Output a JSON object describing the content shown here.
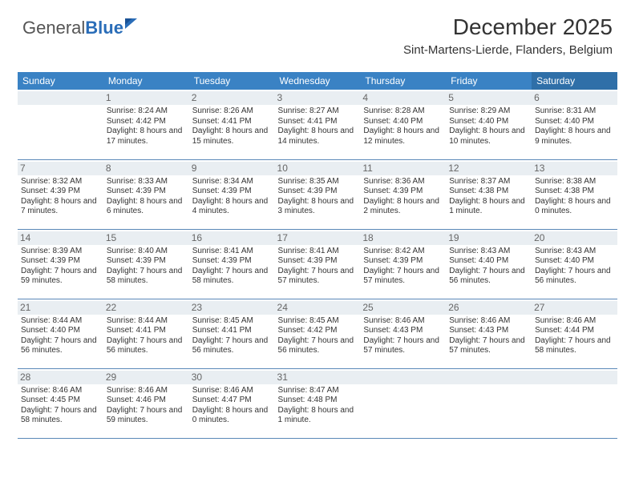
{
  "logo": {
    "word1": "General",
    "word2": "Blue"
  },
  "header": {
    "month_title": "December 2025",
    "location": "Sint-Martens-Lierde, Flanders, Belgium"
  },
  "colors": {
    "header_bg": "#3a82c4",
    "header_bg_sat": "#2f6fa8",
    "daynum_bg": "#e9eef2",
    "row_border": "#5a88b8",
    "text": "#333333",
    "logo_gray": "#555555",
    "logo_blue": "#2a6db8"
  },
  "dow": [
    "Sunday",
    "Monday",
    "Tuesday",
    "Wednesday",
    "Thursday",
    "Friday",
    "Saturday"
  ],
  "weeks": [
    [
      null,
      {
        "n": "1",
        "sr": "Sunrise: 8:24 AM",
        "ss": "Sunset: 4:42 PM",
        "dl": "Daylight: 8 hours and 17 minutes."
      },
      {
        "n": "2",
        "sr": "Sunrise: 8:26 AM",
        "ss": "Sunset: 4:41 PM",
        "dl": "Daylight: 8 hours and 15 minutes."
      },
      {
        "n": "3",
        "sr": "Sunrise: 8:27 AM",
        "ss": "Sunset: 4:41 PM",
        "dl": "Daylight: 8 hours and 14 minutes."
      },
      {
        "n": "4",
        "sr": "Sunrise: 8:28 AM",
        "ss": "Sunset: 4:40 PM",
        "dl": "Daylight: 8 hours and 12 minutes."
      },
      {
        "n": "5",
        "sr": "Sunrise: 8:29 AM",
        "ss": "Sunset: 4:40 PM",
        "dl": "Daylight: 8 hours and 10 minutes."
      },
      {
        "n": "6",
        "sr": "Sunrise: 8:31 AM",
        "ss": "Sunset: 4:40 PM",
        "dl": "Daylight: 8 hours and 9 minutes."
      }
    ],
    [
      {
        "n": "7",
        "sr": "Sunrise: 8:32 AM",
        "ss": "Sunset: 4:39 PM",
        "dl": "Daylight: 8 hours and 7 minutes."
      },
      {
        "n": "8",
        "sr": "Sunrise: 8:33 AM",
        "ss": "Sunset: 4:39 PM",
        "dl": "Daylight: 8 hours and 6 minutes."
      },
      {
        "n": "9",
        "sr": "Sunrise: 8:34 AM",
        "ss": "Sunset: 4:39 PM",
        "dl": "Daylight: 8 hours and 4 minutes."
      },
      {
        "n": "10",
        "sr": "Sunrise: 8:35 AM",
        "ss": "Sunset: 4:39 PM",
        "dl": "Daylight: 8 hours and 3 minutes."
      },
      {
        "n": "11",
        "sr": "Sunrise: 8:36 AM",
        "ss": "Sunset: 4:39 PM",
        "dl": "Daylight: 8 hours and 2 minutes."
      },
      {
        "n": "12",
        "sr": "Sunrise: 8:37 AM",
        "ss": "Sunset: 4:38 PM",
        "dl": "Daylight: 8 hours and 1 minute."
      },
      {
        "n": "13",
        "sr": "Sunrise: 8:38 AM",
        "ss": "Sunset: 4:38 PM",
        "dl": "Daylight: 8 hours and 0 minutes."
      }
    ],
    [
      {
        "n": "14",
        "sr": "Sunrise: 8:39 AM",
        "ss": "Sunset: 4:39 PM",
        "dl": "Daylight: 7 hours and 59 minutes."
      },
      {
        "n": "15",
        "sr": "Sunrise: 8:40 AM",
        "ss": "Sunset: 4:39 PM",
        "dl": "Daylight: 7 hours and 58 minutes."
      },
      {
        "n": "16",
        "sr": "Sunrise: 8:41 AM",
        "ss": "Sunset: 4:39 PM",
        "dl": "Daylight: 7 hours and 58 minutes."
      },
      {
        "n": "17",
        "sr": "Sunrise: 8:41 AM",
        "ss": "Sunset: 4:39 PM",
        "dl": "Daylight: 7 hours and 57 minutes."
      },
      {
        "n": "18",
        "sr": "Sunrise: 8:42 AM",
        "ss": "Sunset: 4:39 PM",
        "dl": "Daylight: 7 hours and 57 minutes."
      },
      {
        "n": "19",
        "sr": "Sunrise: 8:43 AM",
        "ss": "Sunset: 4:40 PM",
        "dl": "Daylight: 7 hours and 56 minutes."
      },
      {
        "n": "20",
        "sr": "Sunrise: 8:43 AM",
        "ss": "Sunset: 4:40 PM",
        "dl": "Daylight: 7 hours and 56 minutes."
      }
    ],
    [
      {
        "n": "21",
        "sr": "Sunrise: 8:44 AM",
        "ss": "Sunset: 4:40 PM",
        "dl": "Daylight: 7 hours and 56 minutes."
      },
      {
        "n": "22",
        "sr": "Sunrise: 8:44 AM",
        "ss": "Sunset: 4:41 PM",
        "dl": "Daylight: 7 hours and 56 minutes."
      },
      {
        "n": "23",
        "sr": "Sunrise: 8:45 AM",
        "ss": "Sunset: 4:41 PM",
        "dl": "Daylight: 7 hours and 56 minutes."
      },
      {
        "n": "24",
        "sr": "Sunrise: 8:45 AM",
        "ss": "Sunset: 4:42 PM",
        "dl": "Daylight: 7 hours and 56 minutes."
      },
      {
        "n": "25",
        "sr": "Sunrise: 8:46 AM",
        "ss": "Sunset: 4:43 PM",
        "dl": "Daylight: 7 hours and 57 minutes."
      },
      {
        "n": "26",
        "sr": "Sunrise: 8:46 AM",
        "ss": "Sunset: 4:43 PM",
        "dl": "Daylight: 7 hours and 57 minutes."
      },
      {
        "n": "27",
        "sr": "Sunrise: 8:46 AM",
        "ss": "Sunset: 4:44 PM",
        "dl": "Daylight: 7 hours and 58 minutes."
      }
    ],
    [
      {
        "n": "28",
        "sr": "Sunrise: 8:46 AM",
        "ss": "Sunset: 4:45 PM",
        "dl": "Daylight: 7 hours and 58 minutes."
      },
      {
        "n": "29",
        "sr": "Sunrise: 8:46 AM",
        "ss": "Sunset: 4:46 PM",
        "dl": "Daylight: 7 hours and 59 minutes."
      },
      {
        "n": "30",
        "sr": "Sunrise: 8:46 AM",
        "ss": "Sunset: 4:47 PM",
        "dl": "Daylight: 8 hours and 0 minutes."
      },
      {
        "n": "31",
        "sr": "Sunrise: 8:47 AM",
        "ss": "Sunset: 4:48 PM",
        "dl": "Daylight: 8 hours and 1 minute."
      },
      null,
      null,
      null
    ]
  ]
}
